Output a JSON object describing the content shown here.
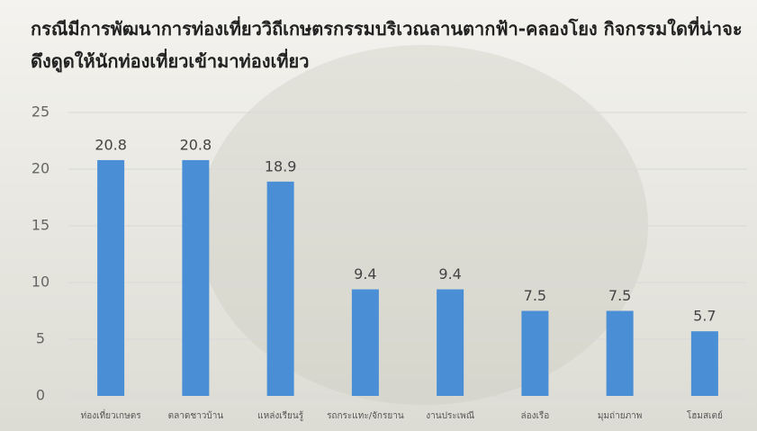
{
  "chart_data": {
    "type": "bar",
    "title": "กรณีมีการพัฒนาการท่องเที่ยววิถีเกษตรกรรมบริเวณลานตากฟ้า-คลองโยง กิจกรรมใดที่น่าจะดึงดูดให้นักท่องเที่ยวเข้ามาท่องเที่ยว",
    "categories": [
      "ท่องเที่ยวเกษตร",
      "ตลาดชาวบ้าน",
      "แหล่งเรียนรู้",
      "รถกระแทะ/จักรยาน",
      "งานประเพณี",
      "ล่องเรือ",
      "มุมถ่ายภาพ",
      "โฮมสเตย์"
    ],
    "values": [
      20.8,
      20.8,
      18.9,
      9.4,
      9.4,
      7.5,
      7.5,
      5.7
    ],
    "color": "#4a8fd6",
    "ylim": [
      0,
      25
    ],
    "yticks": [
      0,
      5,
      10,
      15,
      20,
      25
    ],
    "grid": true
  }
}
